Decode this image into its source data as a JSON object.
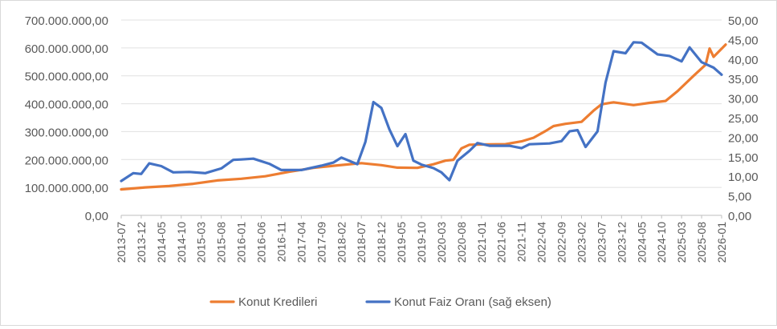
{
  "chart_data": {
    "type": "line",
    "title": "",
    "xlabel": "",
    "ylabel": "",
    "y2label": "",
    "ylim": [
      0,
      700000000
    ],
    "y2lim": [
      0,
      50
    ],
    "y_ticks": [
      "0,00",
      "100.000.000,00",
      "200.000.000,00",
      "300.000.000,00",
      "400.000.000,00",
      "500.000.000,00",
      "600.000.000,00",
      "700.000.000,00"
    ],
    "y2_ticks": [
      "0,00",
      "5,00",
      "10,00",
      "15,00",
      "20,00",
      "25,00",
      "30,00",
      "35,00",
      "40,00",
      "45,00",
      "50,00"
    ],
    "x_ticks": [
      "2013-07",
      "2013-12",
      "2014-05",
      "2014-10",
      "2015-03",
      "2015-08",
      "2016-01",
      "2016-06",
      "2016-11",
      "2017-04",
      "2017-09",
      "2018-02",
      "2018-07",
      "2018-12",
      "2019-05",
      "2019-10",
      "2020-03",
      "2020-08",
      "2021-01",
      "2021-06",
      "2021-11",
      "2022-04",
      "2022-09",
      "2023-02",
      "2023-07",
      "2023-12",
      "2024-05",
      "2024-10",
      "2025-03",
      "2025-08",
      "2026-01"
    ],
    "grid": true,
    "legend_position": "bottom",
    "series": [
      {
        "name": "Konut Kredileri",
        "axis": "left",
        "color": "#ED7D31",
        "points": [
          [
            "2013-07",
            93000000
          ],
          [
            "2014-01",
            100000000
          ],
          [
            "2014-07",
            105000000
          ],
          [
            "2015-01",
            113000000
          ],
          [
            "2015-07",
            125000000
          ],
          [
            "2016-01",
            131000000
          ],
          [
            "2016-07",
            140000000
          ],
          [
            "2017-01",
            156000000
          ],
          [
            "2017-07",
            170000000
          ],
          [
            "2018-01",
            179000000
          ],
          [
            "2018-07",
            187000000
          ],
          [
            "2018-12",
            180000000
          ],
          [
            "2019-04",
            171000000
          ],
          [
            "2019-09",
            170000000
          ],
          [
            "2020-01",
            183000000
          ],
          [
            "2020-04",
            196000000
          ],
          [
            "2020-06",
            199000000
          ],
          [
            "2020-08",
            240000000
          ],
          [
            "2020-10",
            253000000
          ],
          [
            "2021-01",
            254000000
          ],
          [
            "2021-07",
            255000000
          ],
          [
            "2021-11",
            265000000
          ],
          [
            "2022-02",
            278000000
          ],
          [
            "2022-05",
            302000000
          ],
          [
            "2022-07",
            320000000
          ],
          [
            "2022-10",
            328000000
          ],
          [
            "2023-02",
            335000000
          ],
          [
            "2023-05",
            375000000
          ],
          [
            "2023-07",
            398000000
          ],
          [
            "2023-10",
            405000000
          ],
          [
            "2024-03",
            395000000
          ],
          [
            "2024-07",
            403000000
          ],
          [
            "2024-11",
            410000000
          ],
          [
            "2025-02",
            445000000
          ],
          [
            "2025-06",
            500000000
          ],
          [
            "2025-09",
            540000000
          ],
          [
            "2025-10",
            598000000
          ],
          [
            "2025-11",
            568000000
          ],
          [
            "2026-02",
            612000000
          ]
        ]
      },
      {
        "name": "Konut Faiz Oranı (sağ eksen)",
        "axis": "right",
        "color": "#4472C4",
        "points": [
          [
            "2013-07",
            8.8
          ],
          [
            "2013-10",
            10.8
          ],
          [
            "2013-12",
            10.6
          ],
          [
            "2014-02",
            13.3
          ],
          [
            "2014-05",
            12.6
          ],
          [
            "2014-08",
            11.0
          ],
          [
            "2014-12",
            11.1
          ],
          [
            "2015-04",
            10.8
          ],
          [
            "2015-08",
            12.0
          ],
          [
            "2015-11",
            14.2
          ],
          [
            "2016-01",
            14.3
          ],
          [
            "2016-04",
            14.5
          ],
          [
            "2016-08",
            13.2
          ],
          [
            "2016-11",
            11.6
          ],
          [
            "2017-04",
            11.6
          ],
          [
            "2017-09",
            12.7
          ],
          [
            "2017-12",
            13.5
          ],
          [
            "2018-02",
            14.8
          ],
          [
            "2018-06",
            13.1
          ],
          [
            "2018-08",
            18.8
          ],
          [
            "2018-10",
            29.0
          ],
          [
            "2018-12",
            27.5
          ],
          [
            "2019-02",
            22.0
          ],
          [
            "2019-04",
            17.7
          ],
          [
            "2019-06",
            20.8
          ],
          [
            "2019-08",
            14.0
          ],
          [
            "2019-10",
            13.0
          ],
          [
            "2020-01",
            12.1
          ],
          [
            "2020-03",
            11.0
          ],
          [
            "2020-05",
            9.0
          ],
          [
            "2020-07",
            14.0
          ],
          [
            "2020-10",
            16.5
          ],
          [
            "2020-12",
            18.5
          ],
          [
            "2021-03",
            17.8
          ],
          [
            "2021-08",
            17.8
          ],
          [
            "2021-11",
            17.2
          ],
          [
            "2022-01",
            18.2
          ],
          [
            "2022-06",
            18.4
          ],
          [
            "2022-09",
            19.0
          ],
          [
            "2022-11",
            21.5
          ],
          [
            "2023-01",
            21.8
          ],
          [
            "2023-03",
            17.5
          ],
          [
            "2023-06",
            21.5
          ],
          [
            "2023-08",
            34.0
          ],
          [
            "2023-10",
            42.0
          ],
          [
            "2024-01",
            41.5
          ],
          [
            "2024-03",
            44.3
          ],
          [
            "2024-05",
            44.2
          ],
          [
            "2024-09",
            41.2
          ],
          [
            "2024-12",
            40.8
          ],
          [
            "2025-03",
            39.4
          ],
          [
            "2025-05",
            43.0
          ],
          [
            "2025-08",
            39.2
          ],
          [
            "2025-11",
            37.8
          ],
          [
            "2026-01",
            36.0
          ]
        ]
      }
    ]
  }
}
